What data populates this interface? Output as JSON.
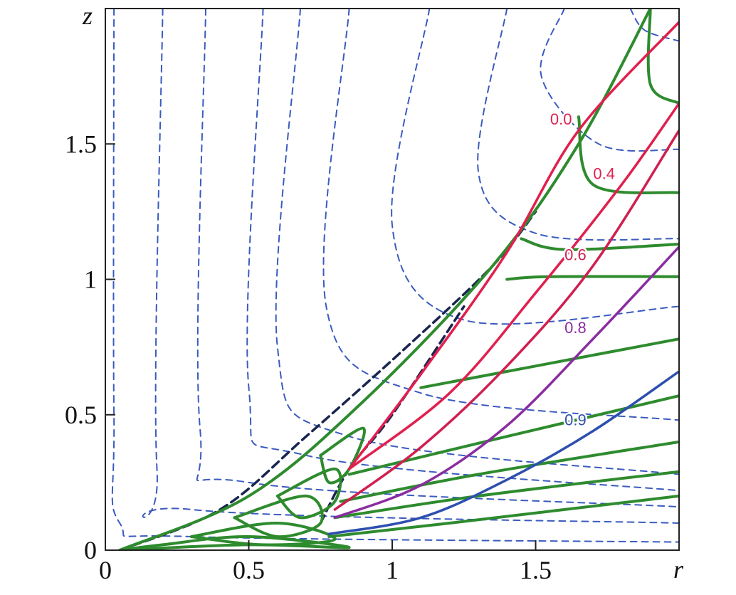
{
  "chart_data": {
    "type": "line",
    "title": "",
    "xlabel": "r",
    "ylabel": "z",
    "xlim": [
      0,
      2
    ],
    "ylim": [
      0,
      2
    ],
    "x_ticks": [
      {
        "value": 0,
        "label": "0"
      },
      {
        "value": 0.5,
        "label": "0.5"
      },
      {
        "value": 1,
        "label": "1"
      },
      {
        "value": 1.5,
        "label": "1.5"
      }
    ],
    "y_ticks": [
      {
        "value": 0,
        "label": "0"
      },
      {
        "value": 0.5,
        "label": "0.5"
      },
      {
        "value": 1,
        "label": "1"
      },
      {
        "value": 1.5,
        "label": "1.5"
      }
    ],
    "grid": false,
    "legend": "none",
    "colors": {
      "dashed_contours": "#3a5bbf",
      "boundary": "#1a2550",
      "green_curves": "#2e8b2e",
      "level_0.0": "#e0204e",
      "level_0.4": "#e0204e",
      "level_0.6": "#d01f50",
      "level_0.8": "#8a2da0",
      "level_0.9": "#2e4fae"
    },
    "labeled_contours": [
      {
        "label": "0.0",
        "points": [
          [
            0.85,
            0.3
          ],
          [
            1.1,
            0.65
          ],
          [
            1.4,
            1.1
          ],
          [
            1.65,
            1.55
          ],
          [
            2.0,
            1.95
          ]
        ]
      },
      {
        "label": "0.4",
        "points": [
          [
            0.85,
            0.3
          ],
          [
            1.2,
            0.58
          ],
          [
            1.5,
            0.95
          ],
          [
            1.8,
            1.35
          ],
          [
            2.0,
            1.65
          ]
        ]
      },
      {
        "label": "0.6",
        "points": [
          [
            0.8,
            0.15
          ],
          [
            1.1,
            0.38
          ],
          [
            1.4,
            0.68
          ],
          [
            1.7,
            1.05
          ],
          [
            2.0,
            1.55
          ]
        ]
      },
      {
        "label": "0.8",
        "points": [
          [
            0.8,
            0.12
          ],
          [
            1.1,
            0.24
          ],
          [
            1.4,
            0.46
          ],
          [
            1.7,
            0.78
          ],
          [
            2.0,
            1.12
          ]
        ]
      },
      {
        "label": "0.9",
        "points": [
          [
            0.78,
            0.06
          ],
          [
            1.1,
            0.12
          ],
          [
            1.4,
            0.26
          ],
          [
            1.7,
            0.44
          ],
          [
            2.0,
            0.66
          ]
        ]
      }
    ],
    "dashed_contours": [
      [
        [
          0.03,
          2.0
        ],
        [
          0.03,
          0.5
        ],
        [
          0.05,
          0.1
        ],
        [
          0.3,
          0.05
        ],
        [
          2.0,
          0.03
        ]
      ],
      [
        [
          0.2,
          2.0
        ],
        [
          0.18,
          0.3
        ],
        [
          0.3,
          0.15
        ],
        [
          2.0,
          0.1
        ]
      ],
      [
        [
          0.35,
          2.0
        ],
        [
          0.33,
          0.45
        ],
        [
          0.5,
          0.25
        ],
        [
          2.0,
          0.16
        ]
      ],
      [
        [
          0.55,
          2.0
        ],
        [
          0.5,
          0.6
        ],
        [
          0.7,
          0.35
        ],
        [
          2.0,
          0.22
        ]
      ],
      [
        [
          0.68,
          2.0
        ],
        [
          0.6,
          0.75
        ],
        [
          0.85,
          0.42
        ],
        [
          2.0,
          0.28
        ]
      ],
      [
        [
          0.85,
          2.0
        ],
        [
          0.77,
          0.9
        ],
        [
          1.1,
          0.58
        ],
        [
          2.0,
          0.48
        ]
      ],
      [
        [
          1.13,
          2.0
        ],
        [
          1.0,
          1.2
        ],
        [
          1.25,
          0.85
        ],
        [
          2.0,
          0.9
        ]
      ],
      [
        [
          1.4,
          2.0
        ],
        [
          1.3,
          1.4
        ],
        [
          1.5,
          1.17
        ],
        [
          2.0,
          1.15
        ]
      ],
      [
        [
          1.6,
          2.0
        ],
        [
          1.52,
          1.75
        ],
        [
          1.72,
          1.5
        ],
        [
          2.0,
          1.48
        ]
      ],
      [
        [
          1.83,
          2.0
        ],
        [
          1.88,
          1.92
        ],
        [
          2.0,
          1.88
        ]
      ]
    ],
    "boundary": [
      [
        0.05,
        0.0
      ],
      [
        0.4,
        0.15
      ],
      [
        0.7,
        0.42
      ],
      [
        1.05,
        0.75
      ],
      [
        1.35,
        1.05
      ],
      [
        1.5,
        1.25
      ]
    ],
    "boundary_inner": [
      [
        0.75,
        0.1
      ],
      [
        0.85,
        0.3
      ],
      [
        1.0,
        0.5
      ],
      [
        1.25,
        0.9
      ]
    ],
    "green_curves": [
      [
        [
          0.78,
          0.05
        ],
        [
          1.2,
          0.1
        ],
        [
          2.0,
          0.2
        ]
      ],
      [
        [
          0.8,
          0.12
        ],
        [
          1.3,
          0.2
        ],
        [
          2.0,
          0.29
        ]
      ],
      [
        [
          0.82,
          0.18
        ],
        [
          1.3,
          0.28
        ],
        [
          2.0,
          0.4
        ]
      ],
      [
        [
          0.85,
          0.28
        ],
        [
          1.4,
          0.42
        ],
        [
          2.0,
          0.57
        ]
      ],
      [
        [
          1.1,
          0.6
        ],
        [
          1.5,
          0.68
        ],
        [
          2.0,
          0.78
        ]
      ],
      [
        [
          1.4,
          1.0
        ],
        [
          1.55,
          1.01
        ],
        [
          2.0,
          1.01
        ]
      ],
      [
        [
          1.45,
          1.15
        ],
        [
          1.6,
          1.11
        ],
        [
          2.0,
          1.13
        ]
      ],
      [
        [
          1.65,
          1.6
        ],
        [
          1.7,
          1.35
        ],
        [
          2.0,
          1.32
        ]
      ],
      [
        [
          1.9,
          2.0
        ],
        [
          1.9,
          1.72
        ],
        [
          2.0,
          1.65
        ]
      ],
      [
        [
          0.05,
          0.0
        ],
        [
          0.5,
          0.2
        ],
        [
          0.9,
          0.55
        ],
        [
          1.35,
          1.05
        ],
        [
          1.65,
          1.5
        ],
        [
          1.9,
          2.0
        ]
      ]
    ],
    "green_loops": [
      [
        [
          0.05,
          0.0
        ],
        [
          0.5,
          0.02
        ],
        [
          0.85,
          0.01
        ],
        [
          0.5,
          0.05
        ],
        [
          0.2,
          0.02
        ]
      ],
      [
        [
          0.3,
          0.05
        ],
        [
          0.6,
          0.1
        ],
        [
          0.8,
          0.04
        ],
        [
          0.55,
          0.02
        ]
      ],
      [
        [
          0.45,
          0.12
        ],
        [
          0.7,
          0.2
        ],
        [
          0.75,
          0.1
        ],
        [
          0.6,
          0.05
        ]
      ],
      [
        [
          0.6,
          0.2
        ],
        [
          0.8,
          0.3
        ],
        [
          0.8,
          0.18
        ],
        [
          0.68,
          0.12
        ]
      ],
      [
        [
          0.75,
          0.35
        ],
        [
          0.9,
          0.45
        ],
        [
          0.85,
          0.3
        ],
        [
          0.78,
          0.25
        ]
      ]
    ]
  }
}
